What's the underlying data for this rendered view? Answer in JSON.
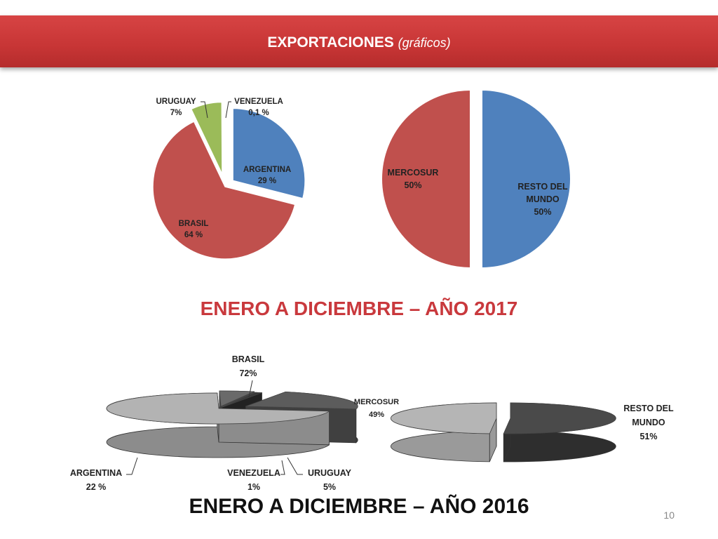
{
  "header": {
    "title": "EXPORTACIONES",
    "subtitle": "(gráficos)"
  },
  "headings": {
    "year2017": "ENERO A DICIEMBRE – AÑO 2017",
    "year2016": "ENERO A DICIEMBRE – AÑO 2016"
  },
  "page_number": "10",
  "colors": {
    "banner": "#c73535",
    "heading2017": "#c9393d",
    "blue": "#4f81bd",
    "red": "#c0504d",
    "green": "#9bbb59"
  },
  "chart_data": [
    {
      "type": "pie",
      "period": "ENERO A DICIEMBRE – AÑO 2017",
      "slices": [
        {
          "label": "ARGENTINA",
          "value": 29,
          "display": "29 %",
          "color": "#4f81bd"
        },
        {
          "label": "BRASIL",
          "value": 64,
          "display": "64 %",
          "color": "#c0504d"
        },
        {
          "label": "URUGUAY",
          "value": 7,
          "display": "7%",
          "color": "#9bbb59"
        },
        {
          "label": "VENEZUELA",
          "value": 0.1,
          "display": "0,1 %",
          "color": "#4f81bd"
        }
      ]
    },
    {
      "type": "pie",
      "period": "ENERO A DICIEMBRE – AÑO 2017",
      "slices": [
        {
          "label": "RESTO DEL MUNDO",
          "value": 50,
          "display": "50%",
          "color": "#4f81bd"
        },
        {
          "label": "MERCOSUR",
          "value": 50,
          "display": "50%",
          "color": "#c0504d"
        }
      ]
    },
    {
      "type": "pie",
      "period": "ENERO A DICIEMBRE – AÑO 2016",
      "style": "3d-grayscale",
      "slices": [
        {
          "label": "BRASIL",
          "value": 72,
          "display": "72%"
        },
        {
          "label": "URUGUAY",
          "value": 5,
          "display": "5%"
        },
        {
          "label": "VENEZUELA",
          "value": 1,
          "display": "1%"
        },
        {
          "label": "ARGENTINA",
          "value": 22,
          "display": "22 %"
        }
      ]
    },
    {
      "type": "pie",
      "period": "ENERO A DICIEMBRE – AÑO 2016",
      "style": "3d-grayscale",
      "slices": [
        {
          "label": "RESTO DEL MUNDO",
          "value": 51,
          "display": "51%"
        },
        {
          "label": "MERCOSUR",
          "value": 49,
          "display": "49%"
        }
      ]
    }
  ]
}
